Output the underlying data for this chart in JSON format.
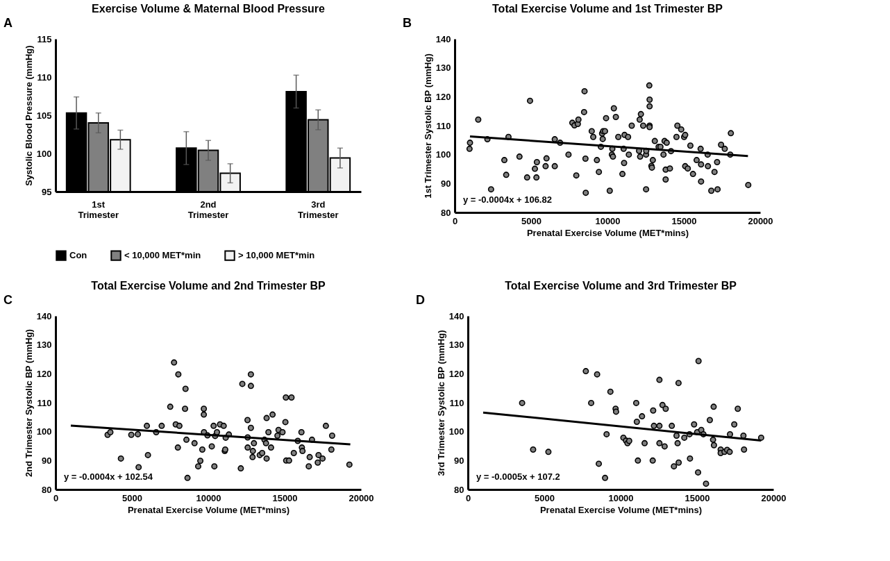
{
  "chart_data": [
    {
      "type": "bar",
      "title": "Exercise Volume & Maternal Blood Pressure",
      "ylabel": "Systolic Blood Pressure (mmHg)",
      "categories": [
        "1st Trimester",
        "2nd Trimester",
        "3rd Trimester"
      ],
      "series": [
        {
          "name": "Con",
          "color": "#000000",
          "values": [
            105.3,
            100.7,
            108.1
          ],
          "errors": [
            2.1,
            2.15,
            2.15
          ]
        },
        {
          "name": "< 10,000 MET*min",
          "color": "#808080",
          "values": [
            104.0,
            100.4,
            104.4
          ],
          "errors": [
            1.3,
            1.3,
            1.3
          ]
        },
        {
          "name": "> 10,000 MET*min",
          "color": "#f2f2f2",
          "values": [
            101.8,
            97.4,
            99.4
          ],
          "errors": [
            1.25,
            1.25,
            1.3
          ]
        }
      ],
      "ylim": [
        95,
        115
      ],
      "yticks": [
        95,
        100,
        105,
        110,
        115
      ],
      "grid": false,
      "legend": "bottom",
      "annotations": [
        "A"
      ]
    },
    {
      "type": "scatter",
      "title": "Total Exercise Volume and 1st Trimester BP",
      "xlabel": "Prenatal Exercise Volume (MET*mins)",
      "ylabel": "1st Trimester Systolic BP (mmHg)",
      "series": [
        {
          "color": "#808080",
          "marker": "circle",
          "x": [
            1000,
            970,
            1540,
            2140,
            2380,
            3250,
            3370,
            3520,
            4240,
            4740,
            4930,
            5250,
            5350,
            5380,
            6010,
            5950,
            6550,
            6550,
            6900,
            7450,
            7700,
            7840,
            7960,
            8060,
            8100,
            8470,
            8500,
            8560,
            8580,
            8970,
            9070,
            9310,
            9440,
            9570,
            9650,
            9690,
            9720,
            9840,
            9910,
            10150,
            10290,
            10320,
            10360,
            10420,
            10550,
            10710,
            10980,
            11060,
            11090,
            11120,
            11350,
            11400,
            11590,
            12070,
            12110,
            12140,
            12190,
            12340,
            12530,
            12530,
            12540,
            12740,
            12760,
            12760,
            12760,
            12760,
            12880,
            12910,
            12970,
            13100,
            13350,
            13470,
            13670,
            13740,
            13810,
            13880,
            13810,
            14090,
            14160,
            14520,
            14580,
            14830,
            15020,
            15090,
            15090,
            15260,
            15430,
            15600,
            15840,
            16100,
            16130,
            16130,
            16560,
            16580,
            16800,
            17010,
            17180,
            17210,
            17440,
            17680,
            18040,
            18080,
            19220
          ],
          "values": [
            104.1,
            102.0,
            112.1,
            105.3,
            88.0,
            98.1,
            93.0,
            106.1,
            99.3,
            92.1,
            118.6,
            95.1,
            92.1,
            97.4,
            98.7,
            96.0,
            96.0,
            105.3,
            104.1,
            100.0,
            111.0,
            110.1,
            92.8,
            110.6,
            112.1,
            114.7,
            121.9,
            98.6,
            86.8,
            108.1,
            106.1,
            98.1,
            94.0,
            102.7,
            107.3,
            105.4,
            108.1,
            108.1,
            112.6,
            87.5,
            100.0,
            102.0,
            99.3,
            116.0,
            113.0,
            106.1,
            93.3,
            102.0,
            97.1,
            106.8,
            106.1,
            100.0,
            110.0,
            101.3,
            112.1,
            99.3,
            114.0,
            110.0,
            100.0,
            88.0,
            101.3,
            123.9,
            119.0,
            116.7,
            110.0,
            109.5,
            96.1,
            95.5,
            98.1,
            104.7,
            102.7,
            102.7,
            100.0,
            104.7,
            94.8,
            104.1,
            91.4,
            95.2,
            101.2,
            106.1,
            110.0,
            108.7,
            106.1,
            106.8,
            96.0,
            95.2,
            103.1,
            93.3,
            98.1,
            102.0,
            96.6,
            90.7,
            100.0,
            96.0,
            87.5,
            94.0,
            97.4,
            88.0,
            103.4,
            102.0,
            100.0,
            107.4,
            89.5
          ]
        },
        {
          "type": "line",
          "color": "#000000",
          "x": [
            1000,
            19200
          ],
          "values": [
            106.3,
            99.5
          ]
        }
      ],
      "xlim": [
        0,
        20000
      ],
      "xticks": [
        0,
        5000,
        10000,
        15000,
        20000
      ],
      "ylim": [
        80,
        140
      ],
      "yticks": [
        80,
        90,
        100,
        110,
        120,
        130,
        140
      ],
      "grid": false,
      "annotations": [
        "B",
        "y = -0.0004x + 106.82"
      ]
    },
    {
      "type": "scatter",
      "title": "Total Exercise Volume and 2nd Trimester BP",
      "xlabel": "Prenatal Exercise Volume (MET*mins)",
      "ylabel": "2nd Trimester Systolic BP (mmHg)",
      "series": [
        {
          "color": "#808080",
          "marker": "circle",
          "x": [
            3410,
            3590,
            4280,
            4960,
            5390,
            5440,
            5980,
            6050,
            6590,
            6950,
            7510,
            7760,
            7870,
            8040,
            8110,
            8010,
            8480,
            8510,
            8570,
            8640,
            9100,
            9340,
            9480,
            9610,
            9710,
            9710,
            9720,
            9950,
            10230,
            10350,
            10400,
            10450,
            10570,
            10770,
            11010,
            11080,
            11110,
            11140,
            11350,
            12130,
            12230,
            12570,
            12580,
            12580,
            12790,
            12790,
            12790,
            12920,
            12900,
            12990,
            13370,
            13530,
            13680,
            13780,
            13820,
            13820,
            13940,
            14110,
            14210,
            14530,
            14600,
            14860,
            15050,
            15080,
            15100,
            15290,
            15450,
            15600,
            15860,
            16100,
            16130,
            16170,
            16580,
            16640,
            16790,
            17170,
            17220,
            17480,
            17700,
            18060,
            18110,
            19240
          ],
          "values": [
            98.9,
            99.8,
            90.7,
            98.9,
            99.1,
            87.7,
            102.0,
            91.9,
            99.8,
            102.0,
            108.6,
            123.9,
            102.5,
            119.8,
            102.0,
            94.5,
            107.9,
            114.8,
            97.2,
            84.0,
            96.0,
            88.0,
            89.9,
            93.8,
            107.9,
            105.9,
            99.8,
            98.7,
            94.9,
            102.0,
            88.0,
            98.5,
            99.8,
            102.5,
            102.0,
            93.3,
            93.8,
            97.9,
            99.0,
            87.3,
            116.5,
            104.0,
            98.0,
            94.5,
            119.8,
            115.8,
            101.3,
            93.3,
            91.2,
            96.0,
            91.9,
            92.6,
            97.2,
            96.0,
            90.7,
            104.7,
            99.8,
            94.5,
            105.9,
            98.6,
            100.6,
            99.8,
            103.3,
            111.8,
            90.0,
            90.0,
            111.8,
            92.6,
            96.8,
            99.8,
            94.5,
            93.3,
            88.0,
            91.2,
            97.2,
            89.3,
            91.9,
            90.7,
            102.0,
            93.8,
            98.6,
            88.6
          ]
        },
        {
          "type": "line",
          "color": "#000000",
          "x": [
            1000,
            19300
          ],
          "values": [
            102.1,
            95.6
          ]
        }
      ],
      "xlim": [
        0,
        20000
      ],
      "xticks": [
        0,
        5000,
        10000,
        15000,
        20000
      ],
      "ylim": [
        80,
        140
      ],
      "yticks": [
        80,
        90,
        100,
        110,
        120,
        130,
        140
      ],
      "grid": false,
      "annotations": [
        "C",
        "y = -0.0004x + 102.54"
      ]
    },
    {
      "type": "scatter",
      "title": "Total Exercise Volume and 3rd Trimester BP",
      "xlabel": "Prenatal Exercise Volume (MET*mins)",
      "ylabel": "3rd Trimester Systolic BP (mmHg)",
      "series": [
        {
          "color": "#808080",
          "marker": "circle",
          "x": [
            3550,
            4270,
            5270,
            7720,
            8070,
            8460,
            8570,
            8980,
            9080,
            9330,
            9670,
            9700,
            10180,
            10350,
            10450,
            10560,
            11020,
            11060,
            11130,
            11400,
            11570,
            12100,
            12130,
            12180,
            12540,
            12540,
            12540,
            12740,
            12880,
            12950,
            13350,
            13490,
            13660,
            13730,
            13790,
            13800,
            14170,
            14510,
            14540,
            14810,
            15010,
            15070,
            15100,
            15280,
            15420,
            15590,
            15840,
            16050,
            16090,
            16110,
            16550,
            16550,
            16800,
            16970,
            17140,
            17160,
            17440,
            17670,
            18040,
            18080,
            19200
          ],
          "values": [
            109.9,
            93.8,
            93.0,
            120.9,
            109.9,
            119.8,
            88.9,
            84.0,
            99.1,
            113.8,
            107.9,
            106.9,
            97.9,
            96.9,
            96.0,
            96.8,
            109.9,
            103.4,
            90.0,
            105.3,
            96.0,
            90.0,
            107.3,
            102.0,
            117.9,
            102.0,
            96.0,
            109.2,
            94.9,
            107.9,
            102.0,
            88.0,
            98.6,
            96.0,
            116.8,
            89.3,
            97.9,
            99.1,
            90.7,
            102.5,
            99.8,
            85.9,
            124.4,
            100.6,
            99.1,
            82.0,
            104.0,
            97.2,
            108.6,
            95.3,
            93.8,
            92.6,
            93.0,
            93.7,
            93.0,
            99.1,
            102.5,
            107.9,
            98.6,
            93.8,
            97.9
          ]
        },
        {
          "type": "line",
          "color": "#000000",
          "x": [
            1000,
            19200
          ],
          "values": [
            106.6,
            96.9
          ]
        }
      ],
      "xlim": [
        0,
        20000
      ],
      "xticks": [
        0,
        5000,
        10000,
        15000,
        20000
      ],
      "ylim": [
        80,
        140
      ],
      "yticks": [
        80,
        90,
        100,
        110,
        120,
        130,
        140
      ],
      "grid": false,
      "annotations": [
        "D",
        "y = -0.0005x + 107.2"
      ]
    }
  ]
}
